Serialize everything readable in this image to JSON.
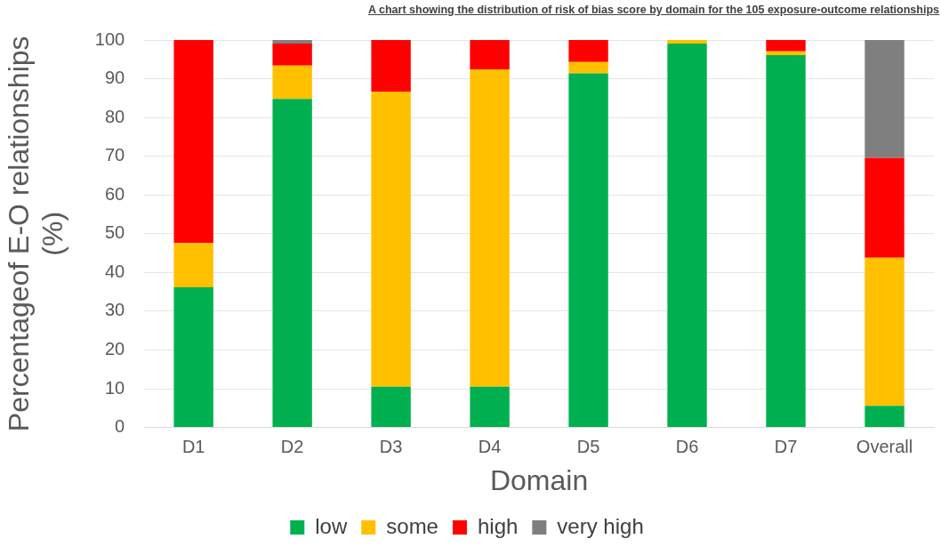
{
  "chart_data": {
    "type": "bar",
    "title": "A chart showing the distribution of risk of bias score by domain for the 105 exposure-outcome relationships",
    "xlabel": "Domain",
    "ylabel": "Percentageof E-O relationships (%)",
    "categories": [
      "D1",
      "D2",
      "D3",
      "D4",
      "D5",
      "D6",
      "D7",
      "Overall"
    ],
    "stacked": true,
    "ylim": [
      0,
      100
    ],
    "yticks": [
      0,
      10,
      20,
      30,
      40,
      50,
      60,
      70,
      80,
      90,
      100
    ],
    "grid": "y",
    "legend": "bottom",
    "series": [
      {
        "name": "low",
        "color": "#00b050",
        "values": [
          36.2,
          84.8,
          10.5,
          10.5,
          91.4,
          99.1,
          96.1,
          5.6
        ]
      },
      {
        "name": "some",
        "color": "#ffc000",
        "values": [
          11.4,
          8.6,
          76.2,
          81.9,
          2.9,
          0.9,
          1.0,
          38.2
        ]
      },
      {
        "name": "high",
        "color": "#ff0000",
        "values": [
          52.4,
          5.7,
          13.3,
          7.6,
          5.7,
          null,
          2.9,
          25.8
        ]
      },
      {
        "name": "very high",
        "color": "#7f7f7f",
        "values": [
          null,
          0.9,
          null,
          null,
          null,
          null,
          null,
          30.4
        ]
      }
    ]
  }
}
